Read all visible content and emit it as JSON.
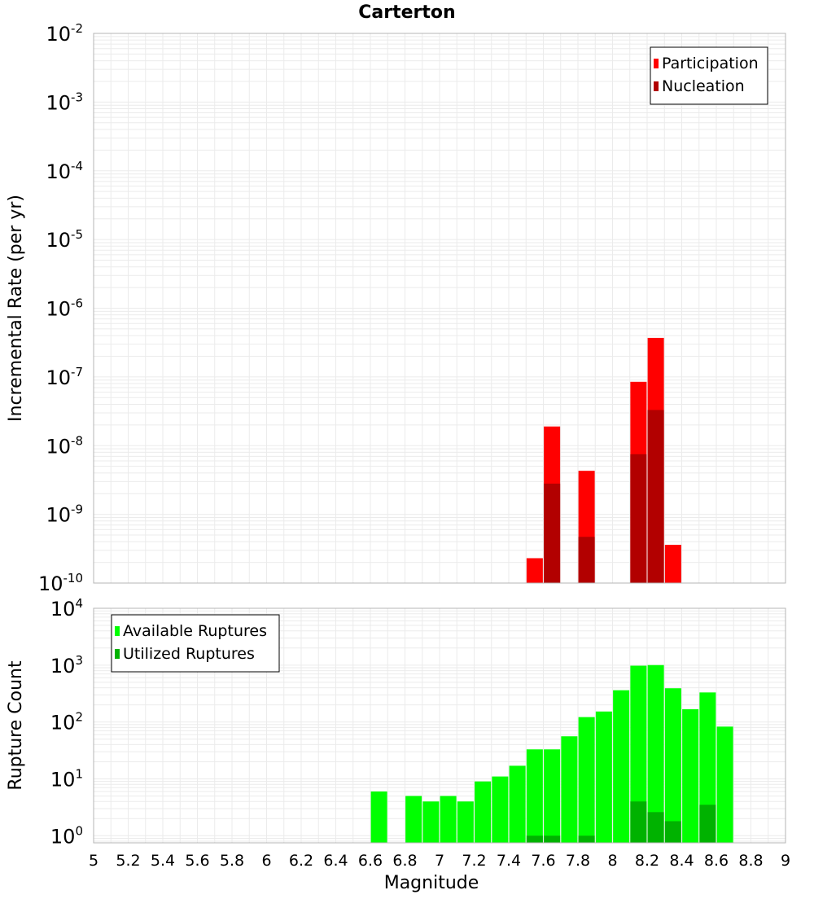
{
  "title": "Carterton",
  "colors": {
    "participation": "#ff0000",
    "nucleation": "#b20000",
    "available": "#00ff00",
    "utilized": "#00b200",
    "grid": "#ebebeb",
    "frame": "#b4b4b4"
  },
  "chart_data": [
    {
      "type": "bar",
      "name": "rates",
      "ylabel": "Incremental Rate (per yr)",
      "yscale": "log",
      "ylim": [
        1e-10,
        0.01
      ],
      "xlim": [
        5,
        9
      ],
      "grid": true,
      "legend_position": "top-right",
      "yticks": [
        {
          "base": "10",
          "exp": "-10"
        },
        {
          "base": "10",
          "exp": "-9"
        },
        {
          "base": "10",
          "exp": "-8"
        },
        {
          "base": "10",
          "exp": "-7"
        },
        {
          "base": "10",
          "exp": "-6"
        },
        {
          "base": "10",
          "exp": "-5"
        },
        {
          "base": "10",
          "exp": "-4"
        },
        {
          "base": "10",
          "exp": "-3"
        },
        {
          "base": "10",
          "exp": "-2"
        }
      ],
      "series": [
        {
          "name": "Participation",
          "color": "#ff0000",
          "points": [
            {
              "x": 7.55,
              "y": 2.3e-10
            },
            {
              "x": 7.65,
              "y": 1.9e-08
            },
            {
              "x": 7.85,
              "y": 4.3e-09
            },
            {
              "x": 8.15,
              "y": 8.5e-08
            },
            {
              "x": 8.25,
              "y": 3.7e-07
            },
            {
              "x": 8.35,
              "y": 3.6e-10
            }
          ]
        },
        {
          "name": "Nucleation",
          "color": "#b20000",
          "points": [
            {
              "x": 7.65,
              "y": 2.8e-09
            },
            {
              "x": 7.85,
              "y": 4.7e-10
            },
            {
              "x": 8.15,
              "y": 7.5e-09
            },
            {
              "x": 8.25,
              "y": 3.3e-08
            }
          ]
        }
      ]
    },
    {
      "type": "bar",
      "name": "counts",
      "xlabel": "Magnitude",
      "ylabel": "Rupture Count",
      "yscale": "log",
      "ylim": [
        0.75,
        10000
      ],
      "xlim": [
        5,
        9
      ],
      "grid": true,
      "legend_position": "top-left",
      "xticks": [
        "5",
        "5.2",
        "5.4",
        "5.6",
        "5.8",
        "6",
        "6.2",
        "6.4",
        "6.6",
        "6.8",
        "7",
        "7.2",
        "7.4",
        "7.6",
        "7.8",
        "8",
        "8.2",
        "8.4",
        "8.6",
        "8.8",
        "9"
      ],
      "yticks": [
        {
          "base": "10",
          "exp": "0"
        },
        {
          "base": "10",
          "exp": "1"
        },
        {
          "base": "10",
          "exp": "2"
        },
        {
          "base": "10",
          "exp": "3"
        },
        {
          "base": "10",
          "exp": "4"
        }
      ],
      "series": [
        {
          "name": "Available Ruptures",
          "color": "#00ff00",
          "points": [
            {
              "x": 6.65,
              "y": 6
            },
            {
              "x": 6.85,
              "y": 5
            },
            {
              "x": 6.95,
              "y": 4
            },
            {
              "x": 7.05,
              "y": 5
            },
            {
              "x": 7.15,
              "y": 4
            },
            {
              "x": 7.25,
              "y": 9
            },
            {
              "x": 7.35,
              "y": 11
            },
            {
              "x": 7.45,
              "y": 17
            },
            {
              "x": 7.55,
              "y": 33
            },
            {
              "x": 7.65,
              "y": 33
            },
            {
              "x": 7.75,
              "y": 56
            },
            {
              "x": 7.85,
              "y": 122
            },
            {
              "x": 7.95,
              "y": 153
            },
            {
              "x": 8.05,
              "y": 362
            },
            {
              "x": 8.15,
              "y": 978
            },
            {
              "x": 8.25,
              "y": 1003
            },
            {
              "x": 8.35,
              "y": 392
            },
            {
              "x": 8.45,
              "y": 168
            },
            {
              "x": 8.55,
              "y": 331
            },
            {
              "x": 8.65,
              "y": 83
            }
          ]
        },
        {
          "name": "Utilized Ruptures",
          "color": "#00b200",
          "points": [
            {
              "x": 7.55,
              "y": 1
            },
            {
              "x": 7.65,
              "y": 1
            },
            {
              "x": 7.85,
              "y": 1
            },
            {
              "x": 8.15,
              "y": 4
            },
            {
              "x": 8.25,
              "y": 2.6
            },
            {
              "x": 8.35,
              "y": 1.8
            },
            {
              "x": 8.55,
              "y": 3.5
            }
          ]
        }
      ]
    }
  ]
}
